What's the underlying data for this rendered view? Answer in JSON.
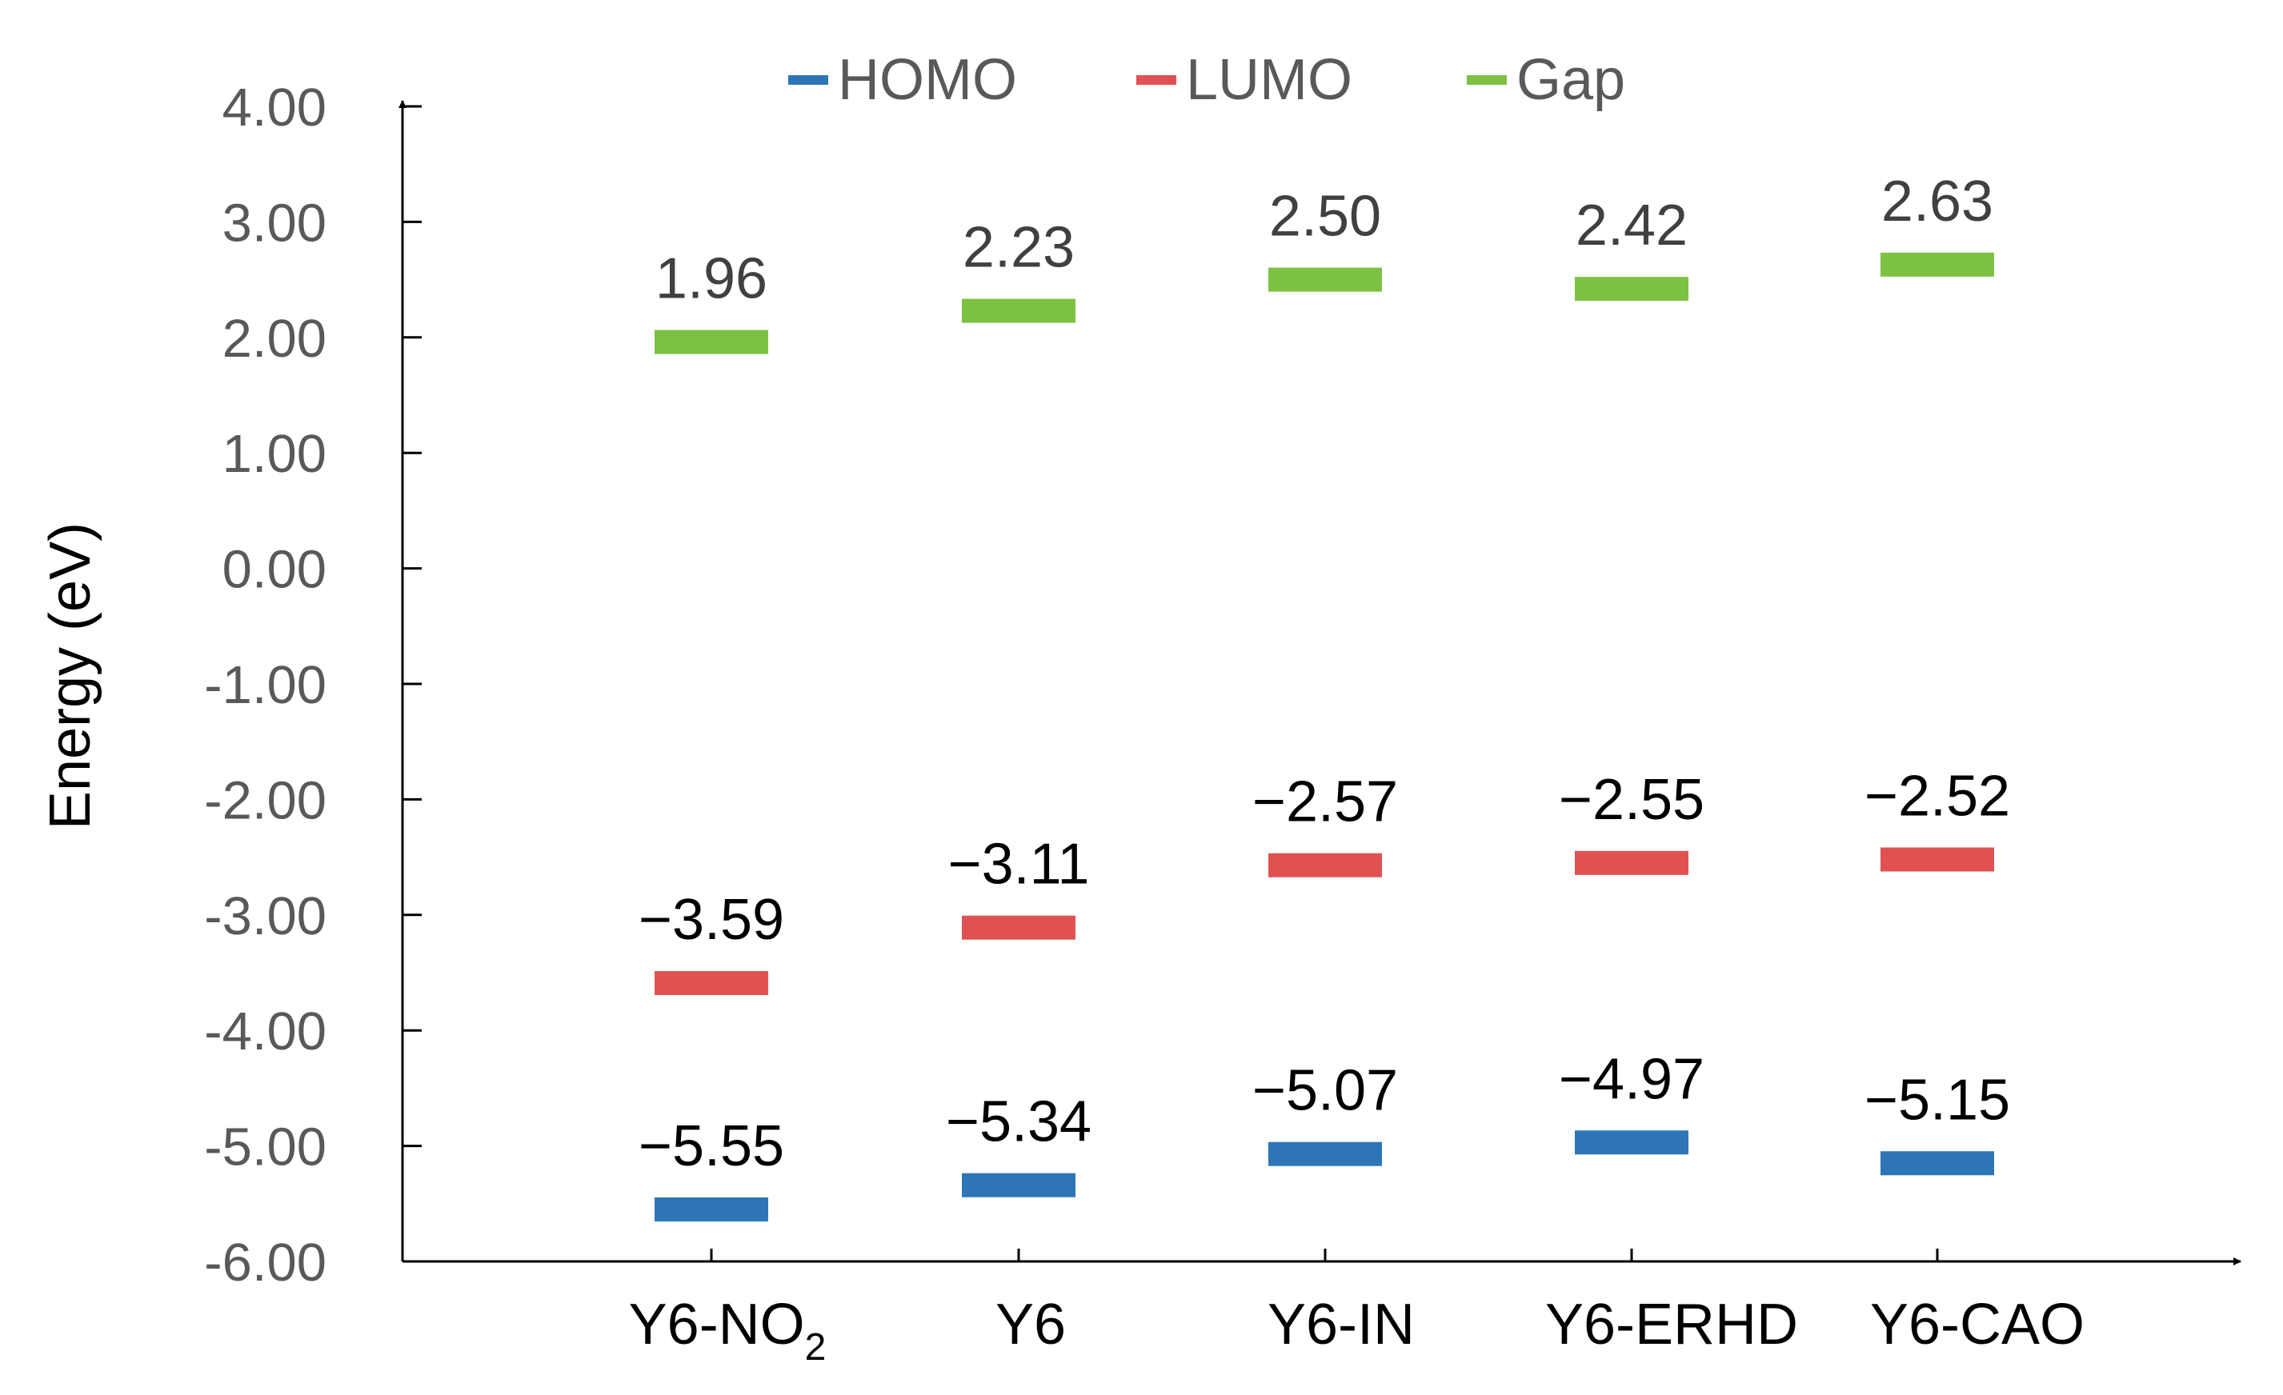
{
  "chart_data": {
    "type": "scatter",
    "ylabel": "Energy (eV)",
    "ylim": [
      -6,
      4
    ],
    "yticks": [
      "4.00",
      "3.00",
      "2.00",
      "1.00",
      "0.00",
      "-1.00",
      "-2.00",
      "-3.00",
      "-4.00",
      "-5.00",
      "-6.00"
    ],
    "ytick_values": [
      4,
      3,
      2,
      1,
      0,
      -1,
      -2,
      -3,
      -4,
      -5,
      -6
    ],
    "categories": [
      {
        "main": "Y6-NO",
        "sub": "2"
      },
      {
        "main": "Y6",
        "sub": ""
      },
      {
        "main": "Y6-IN",
        "sub": ""
      },
      {
        "main": "Y6-ERHD",
        "sub": ""
      },
      {
        "main": "Y6-CAO",
        "sub": ""
      }
    ],
    "legend_position": "top",
    "grid": false,
    "series": [
      {
        "name": "HOMO",
        "color": "#2E75B6",
        "label_color": "#000000",
        "values": [
          -5.55,
          -5.34,
          -5.07,
          -4.97,
          -5.15
        ],
        "labels": [
          "−5.55",
          "−5.34",
          "−5.07",
          "−4.97",
          "−5.15"
        ]
      },
      {
        "name": "LUMO",
        "color": "#E05252",
        "label_color": "#000000",
        "values": [
          -3.59,
          -3.11,
          -2.57,
          -2.55,
          -2.52
        ],
        "labels": [
          "−3.59",
          "−3.11",
          "−2.57",
          "−2.55",
          "−2.52"
        ]
      },
      {
        "name": "Gap",
        "color": "#7DC142",
        "label_color": "#404040",
        "values": [
          1.96,
          2.23,
          2.5,
          2.42,
          2.63
        ],
        "labels": [
          "1.96",
          "2.23",
          "2.50",
          "2.42",
          "2.63"
        ]
      }
    ]
  }
}
